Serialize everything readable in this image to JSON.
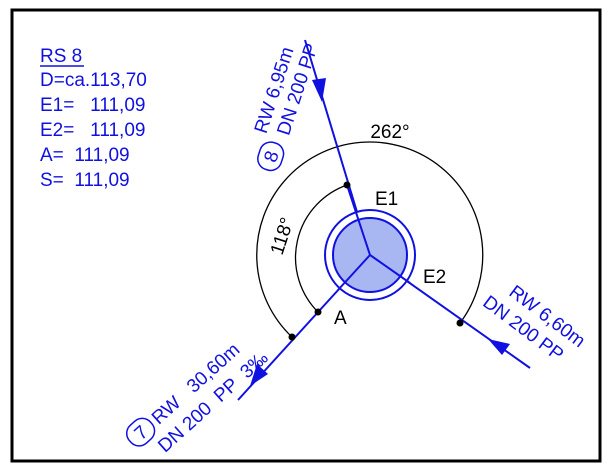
{
  "info": {
    "title": "RS 8",
    "lines": [
      "D=ca.113,70",
      "E1=   111,09",
      "E2=   111,09",
      "A=  111,09",
      "S=  111,09"
    ]
  },
  "pipes": [
    {
      "number": "8",
      "length": "RW 6,95m",
      "spec": "DN 200 PP"
    },
    {
      "length": "RW 6,60m",
      "spec": "DN 200 PP"
    },
    {
      "number": "7",
      "length": "RW   30,60m",
      "spec": "DN 200  PP  3‰"
    }
  ],
  "angles": [
    "262°",
    "118°"
  ],
  "connections": [
    "E1",
    "E2",
    "A"
  ]
}
